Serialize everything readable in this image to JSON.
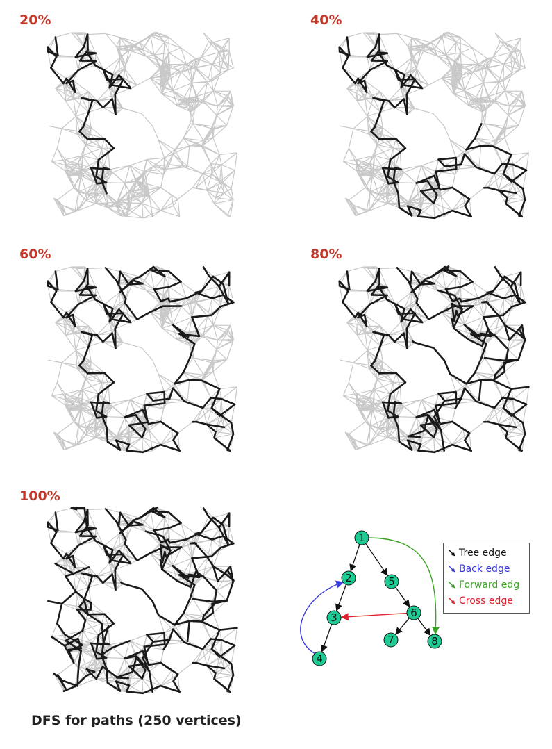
{
  "panels": [
    {
      "label": "20%"
    },
    {
      "label": "40%"
    },
    {
      "label": "60%"
    },
    {
      "label": "80%"
    },
    {
      "label": "100%"
    }
  ],
  "caption": "DFS for paths (250 vertices)",
  "example_graph": {
    "nodes": [
      "1",
      "2",
      "3",
      "4",
      "5",
      "6",
      "7",
      "8"
    ],
    "edges": [
      {
        "from": "1",
        "to": "2",
        "type": "tree"
      },
      {
        "from": "1",
        "to": "5",
        "type": "tree"
      },
      {
        "from": "2",
        "to": "3",
        "type": "tree"
      },
      {
        "from": "3",
        "to": "4",
        "type": "tree"
      },
      {
        "from": "5",
        "to": "6",
        "type": "tree"
      },
      {
        "from": "6",
        "to": "7",
        "type": "tree"
      },
      {
        "from": "6",
        "to": "8",
        "type": "tree"
      },
      {
        "from": "4",
        "to": "2",
        "type": "back"
      },
      {
        "from": "1",
        "to": "8",
        "type": "forward"
      },
      {
        "from": "6",
        "to": "3",
        "type": "cross"
      }
    ],
    "legend": [
      {
        "label": "Tree edge",
        "color": "#111111"
      },
      {
        "label": "Back edge",
        "color": "#3a3adb"
      },
      {
        "label": "Forward edg",
        "color": "#3aa324"
      },
      {
        "label": "Cross edge",
        "color": "#e0202a"
      }
    ],
    "node_color": "#1ecb95"
  },
  "colors": {
    "label": "#c0392b",
    "grid_edge": "#c8c8c8",
    "path_edge": "#1a1a1a"
  }
}
